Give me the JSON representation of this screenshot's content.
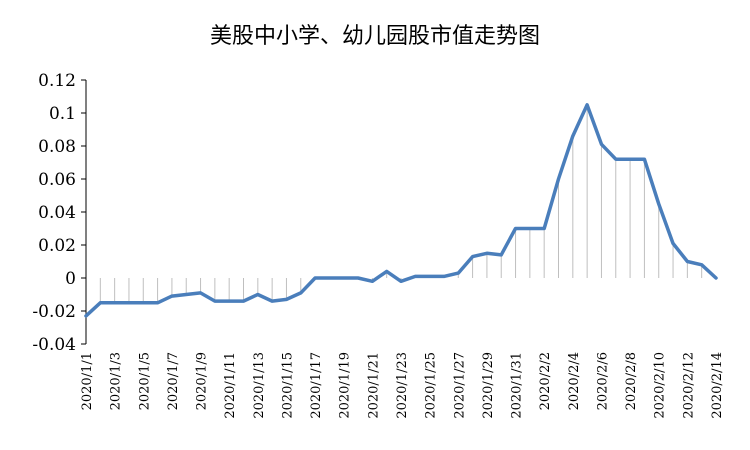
{
  "chart_data": {
    "type": "line",
    "title": "美股中小学、幼儿园股市值走势图",
    "xlabel": "",
    "ylabel": "",
    "ylim": [
      -0.04,
      0.12
    ],
    "yticks": [
      "0.12",
      "0.1",
      "0.08",
      "0.06",
      "0.04",
      "0.02",
      "0",
      "-0.02",
      "-0.04"
    ],
    "ytick_values": [
      0.12,
      0.1,
      0.08,
      0.06,
      0.04,
      0.02,
      0,
      -0.02,
      -0.04
    ],
    "x": [
      "2020/1/1",
      "2020/1/2",
      "2020/1/3",
      "2020/1/4",
      "2020/1/5",
      "2020/1/6",
      "2020/1/7",
      "2020/1/8",
      "2020/1/9",
      "2020/1/10",
      "2020/1/11",
      "2020/1/12",
      "2020/1/13",
      "2020/1/14",
      "2020/1/15",
      "2020/1/16",
      "2020/1/17",
      "2020/1/18",
      "2020/1/19",
      "2020/1/20",
      "2020/1/21",
      "2020/1/22",
      "2020/1/23",
      "2020/1/24",
      "2020/1/25",
      "2020/1/26",
      "2020/1/27",
      "2020/1/28",
      "2020/1/29",
      "2020/1/30",
      "2020/1/31",
      "2020/2/1",
      "2020/2/2",
      "2020/2/3",
      "2020/2/4",
      "2020/2/5",
      "2020/2/6",
      "2020/2/7",
      "2020/2/8",
      "2020/2/9",
      "2020/2/10",
      "2020/2/11",
      "2020/2/12",
      "2020/2/13",
      "2020/2/14"
    ],
    "xtick_labels": [
      "2020/1/1",
      "2020/1/3",
      "2020/1/5",
      "2020/1/7",
      "2020/1/9",
      "2020/1/11",
      "2020/1/13",
      "2020/1/15",
      "2020/1/17",
      "2020/1/19",
      "2020/1/21",
      "2020/1/23",
      "2020/1/25",
      "2020/1/27",
      "2020/1/29",
      "2020/1/31",
      "2020/2/2",
      "2020/2/4",
      "2020/2/6",
      "2020/2/8",
      "2020/2/10",
      "2020/2/12",
      "2020/2/14"
    ],
    "series": [
      {
        "values": [
          -0.023,
          -0.015,
          -0.015,
          -0.015,
          -0.015,
          -0.015,
          -0.011,
          -0.01,
          -0.009,
          -0.014,
          -0.014,
          -0.014,
          -0.01,
          -0.014,
          -0.013,
          -0.009,
          0.0,
          0.0,
          0.0,
          0.0,
          -0.002,
          0.004,
          -0.002,
          0.001,
          0.001,
          0.001,
          0.003,
          0.013,
          0.015,
          0.014,
          0.03,
          0.03,
          0.03,
          0.06,
          0.086,
          0.105,
          0.081,
          0.072,
          0.072,
          0.072,
          0.045,
          0.021,
          0.01,
          0.008,
          0.0
        ],
        "color": "#4a7ebb"
      }
    ],
    "grid": false,
    "drop_lines": true,
    "drop_line_color": "#bfbfbf"
  }
}
